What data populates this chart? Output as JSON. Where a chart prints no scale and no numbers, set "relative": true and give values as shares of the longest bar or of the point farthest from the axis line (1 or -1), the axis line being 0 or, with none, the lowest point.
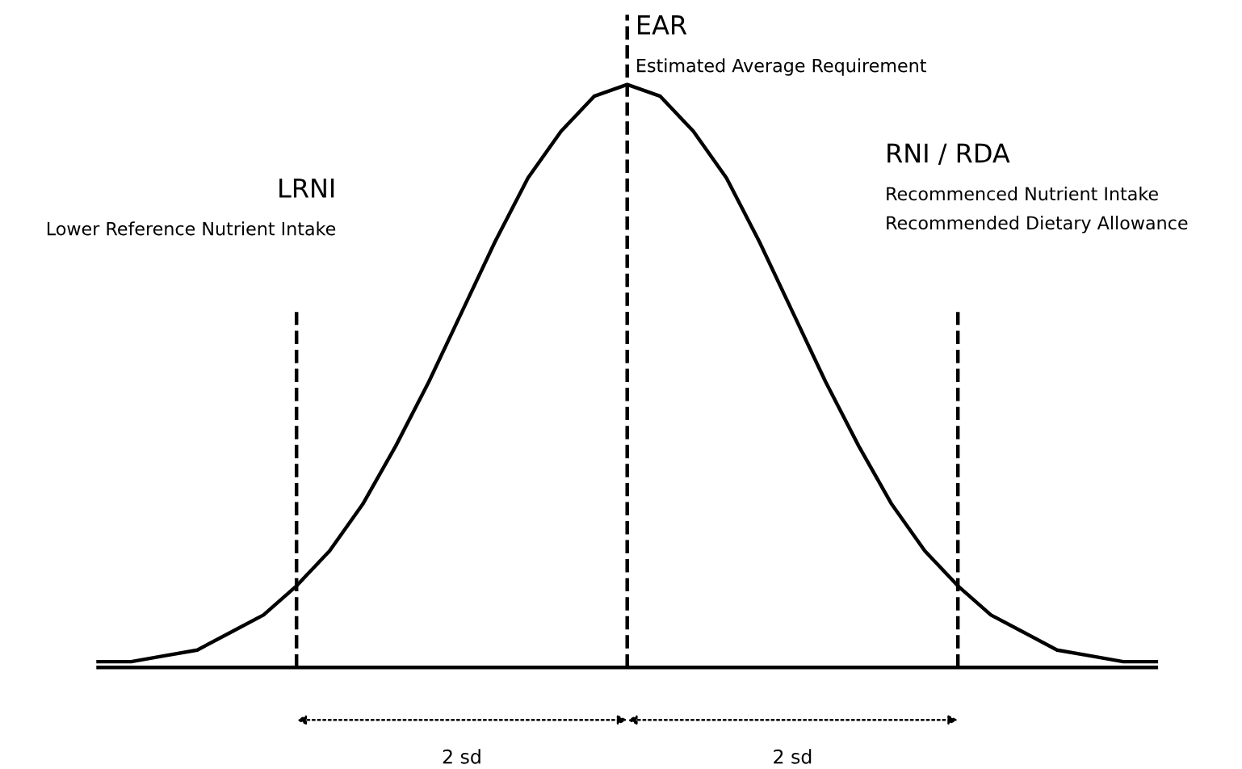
{
  "chart_data": {
    "type": "line",
    "relative": true,
    "categories": [
      null,
      null,
      null,
      null,
      null,
      null,
      null,
      null,
      null,
      null,
      null,
      null,
      null,
      null,
      null,
      null,
      null,
      null,
      null,
      null,
      null,
      null,
      null,
      null,
      null,
      null,
      null,
      null,
      null,
      null,
      null,
      null,
      null
    ],
    "series": [
      {
        "color": "#000000",
        "values": [
          0.01,
          0.01,
          0.02,
          0.03,
          0.06,
          0.09,
          0.14,
          0.2,
          0.28,
          0.38,
          0.49,
          0.61,
          0.73,
          0.84,
          0.92,
          0.98,
          1,
          0.98,
          0.92,
          0.84,
          0.73,
          0.61,
          0.49,
          0.38,
          0.28,
          0.2,
          0.14,
          0.09,
          0.06,
          0.03,
          0.02,
          0.01,
          0.01
        ]
      }
    ],
    "annotations": [
      "LRNI\nLower Reference Nutrient Intake",
      "EAR\nEstimated Average Requirement",
      "RNI / RDA\nRecommenced Nutrient Intake\nRecommended Dietary Allowance",
      "2 sd",
      "2 sd"
    ],
    "grid": false,
    "legend": false,
    "marker": "none",
    "line_style": "solid"
  }
}
